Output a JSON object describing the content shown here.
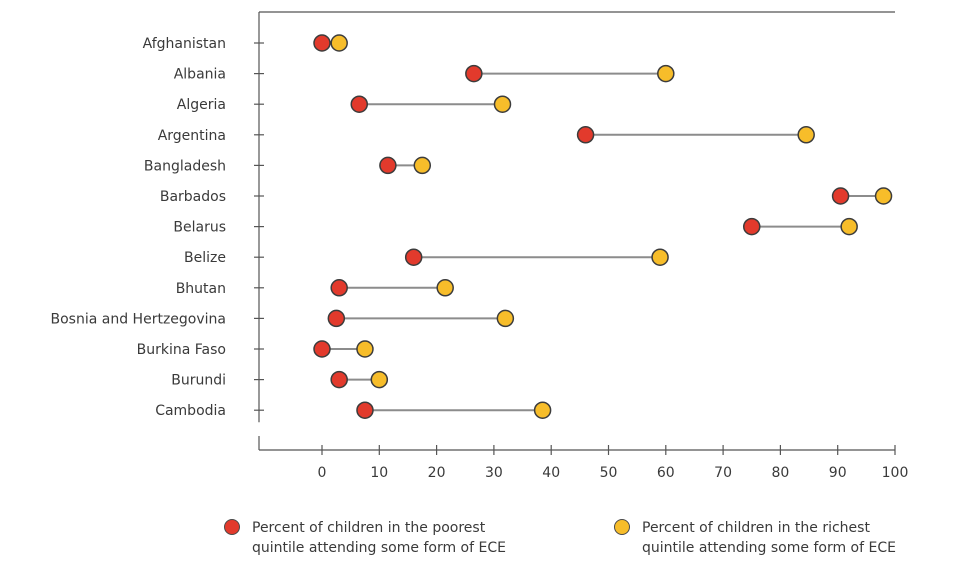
{
  "chart_data": {
    "type": "dumbbell",
    "categories": [
      "Afghanistan",
      "Albania",
      "Algeria",
      "Argentina",
      "Bangladesh",
      "Barbados",
      "Belarus",
      "Belize",
      "Bhutan",
      "Bosnia and Hertzegovina",
      "Burkina Faso",
      "Burundi",
      "Cambodia"
    ],
    "series": [
      {
        "name": "Percent of children in the poorest\nquintile attending some form of ECE",
        "color": "#e23a2c",
        "values": [
          0,
          26.5,
          6.5,
          46,
          11.5,
          90.5,
          75,
          16,
          3,
          2.5,
          0,
          3,
          7.5
        ]
      },
      {
        "name": "Percent of children in the richest\nquintile attending some form of ECE",
        "color": "#f7bd2a",
        "values": [
          3,
          60,
          31.5,
          84.5,
          17.5,
          98,
          92,
          59,
          21.5,
          32,
          7.5,
          10,
          38.5
        ]
      }
    ],
    "x_ticks": [
      "0",
      "10",
      "20",
      "30",
      "40",
      "50",
      "60",
      "70",
      "80",
      "90",
      "100"
    ],
    "xlim": [
      -11,
      100
    ],
    "connector_color": "#8c8c8c",
    "grid": false,
    "legend_position": "bottom"
  }
}
